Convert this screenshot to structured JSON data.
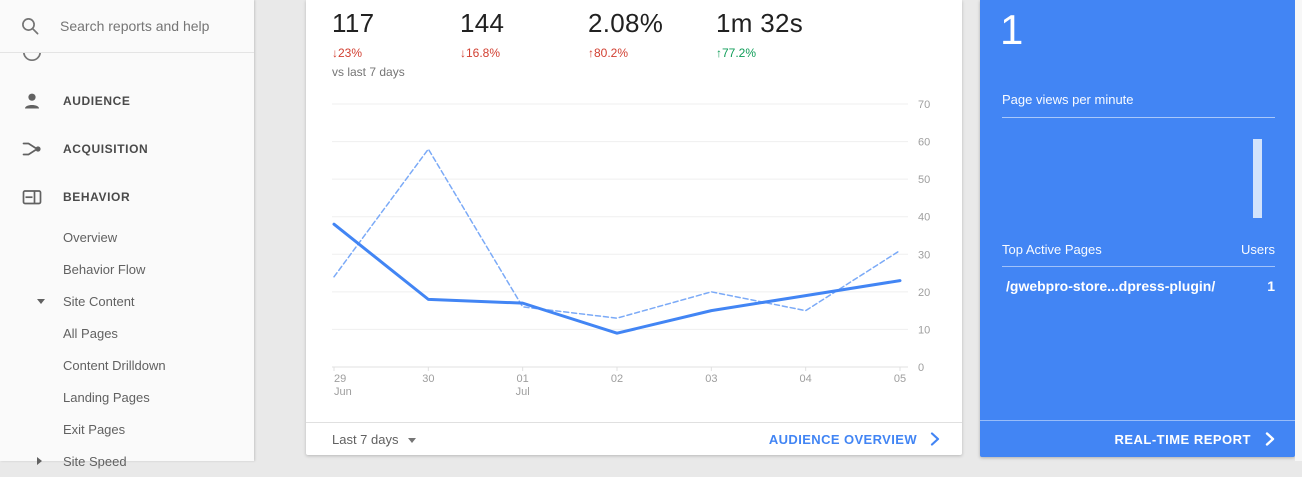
{
  "colors": {
    "accent_blue": "#4285f4",
    "delta_red": "#d23f31",
    "delta_green": "#0f9d58",
    "solid_line": "#4285f4",
    "dashed_line": "#7baaf7",
    "bar_light": "#d2e3fc"
  },
  "sidebar": {
    "search_placeholder": "Search reports and help",
    "items": [
      {
        "label": "AUDIENCE",
        "icon": "person-icon"
      },
      {
        "label": "ACQUISITION",
        "icon": "acquisition-icon"
      },
      {
        "label": "BEHAVIOR",
        "icon": "behavior-icon"
      }
    ],
    "report_links": [
      {
        "label": "Overview"
      },
      {
        "label": "Behavior Flow"
      },
      {
        "label": "Site Content",
        "state": "expanded"
      },
      {
        "label": "All Pages"
      },
      {
        "label": "Content Drilldown"
      },
      {
        "label": "Landing Pages"
      },
      {
        "label": "Exit Pages"
      },
      {
        "label": "Site Speed",
        "state": "collapsed"
      }
    ]
  },
  "metrics": [
    {
      "value": "117",
      "delta": "↓23%",
      "delta_color": "#d23f31",
      "note": "vs last 7 days"
    },
    {
      "value": "144",
      "delta": "↓16.8%",
      "delta_color": "#d23f31"
    },
    {
      "value": "2.08%",
      "delta": "↑80.2%",
      "delta_color": "#d23f31"
    },
    {
      "value": "1m 32s",
      "delta": "↑77.2%",
      "delta_color": "#0f9d58"
    }
  ],
  "chart_data": {
    "type": "line",
    "x": [
      {
        "label": "29",
        "sub": "Jun"
      },
      {
        "label": "30"
      },
      {
        "label": "01",
        "sub": "Jul"
      },
      {
        "label": "02"
      },
      {
        "label": "03"
      },
      {
        "label": "04"
      },
      {
        "label": "05"
      }
    ],
    "series": [
      {
        "name": "current-period",
        "style": "solid",
        "color": "#4285f4",
        "values": [
          38,
          18,
          17,
          9,
          15,
          19,
          23
        ]
      },
      {
        "name": "previous-period",
        "style": "dashed",
        "color": "#7baaf7",
        "values": [
          24,
          58,
          16,
          13,
          20,
          15,
          31
        ]
      }
    ],
    "ylim": [
      0,
      70
    ],
    "ytick_step": 10,
    "grid": "horizontal",
    "legend": "none",
    "yaxis_side": "right"
  },
  "card_footer": {
    "range_label": "Last 7 days",
    "link_label": "AUDIENCE OVERVIEW"
  },
  "realtime": {
    "active_users": "1",
    "chart_label": "Page views per minute",
    "bar_values": [
      1
    ],
    "table": {
      "header_left": "Top Active Pages",
      "header_right": "Users",
      "rows": [
        {
          "page": "/gwebpro-store...dpress-plugin/",
          "users": "1"
        }
      ]
    },
    "footer_link": "REAL-TIME REPORT"
  }
}
